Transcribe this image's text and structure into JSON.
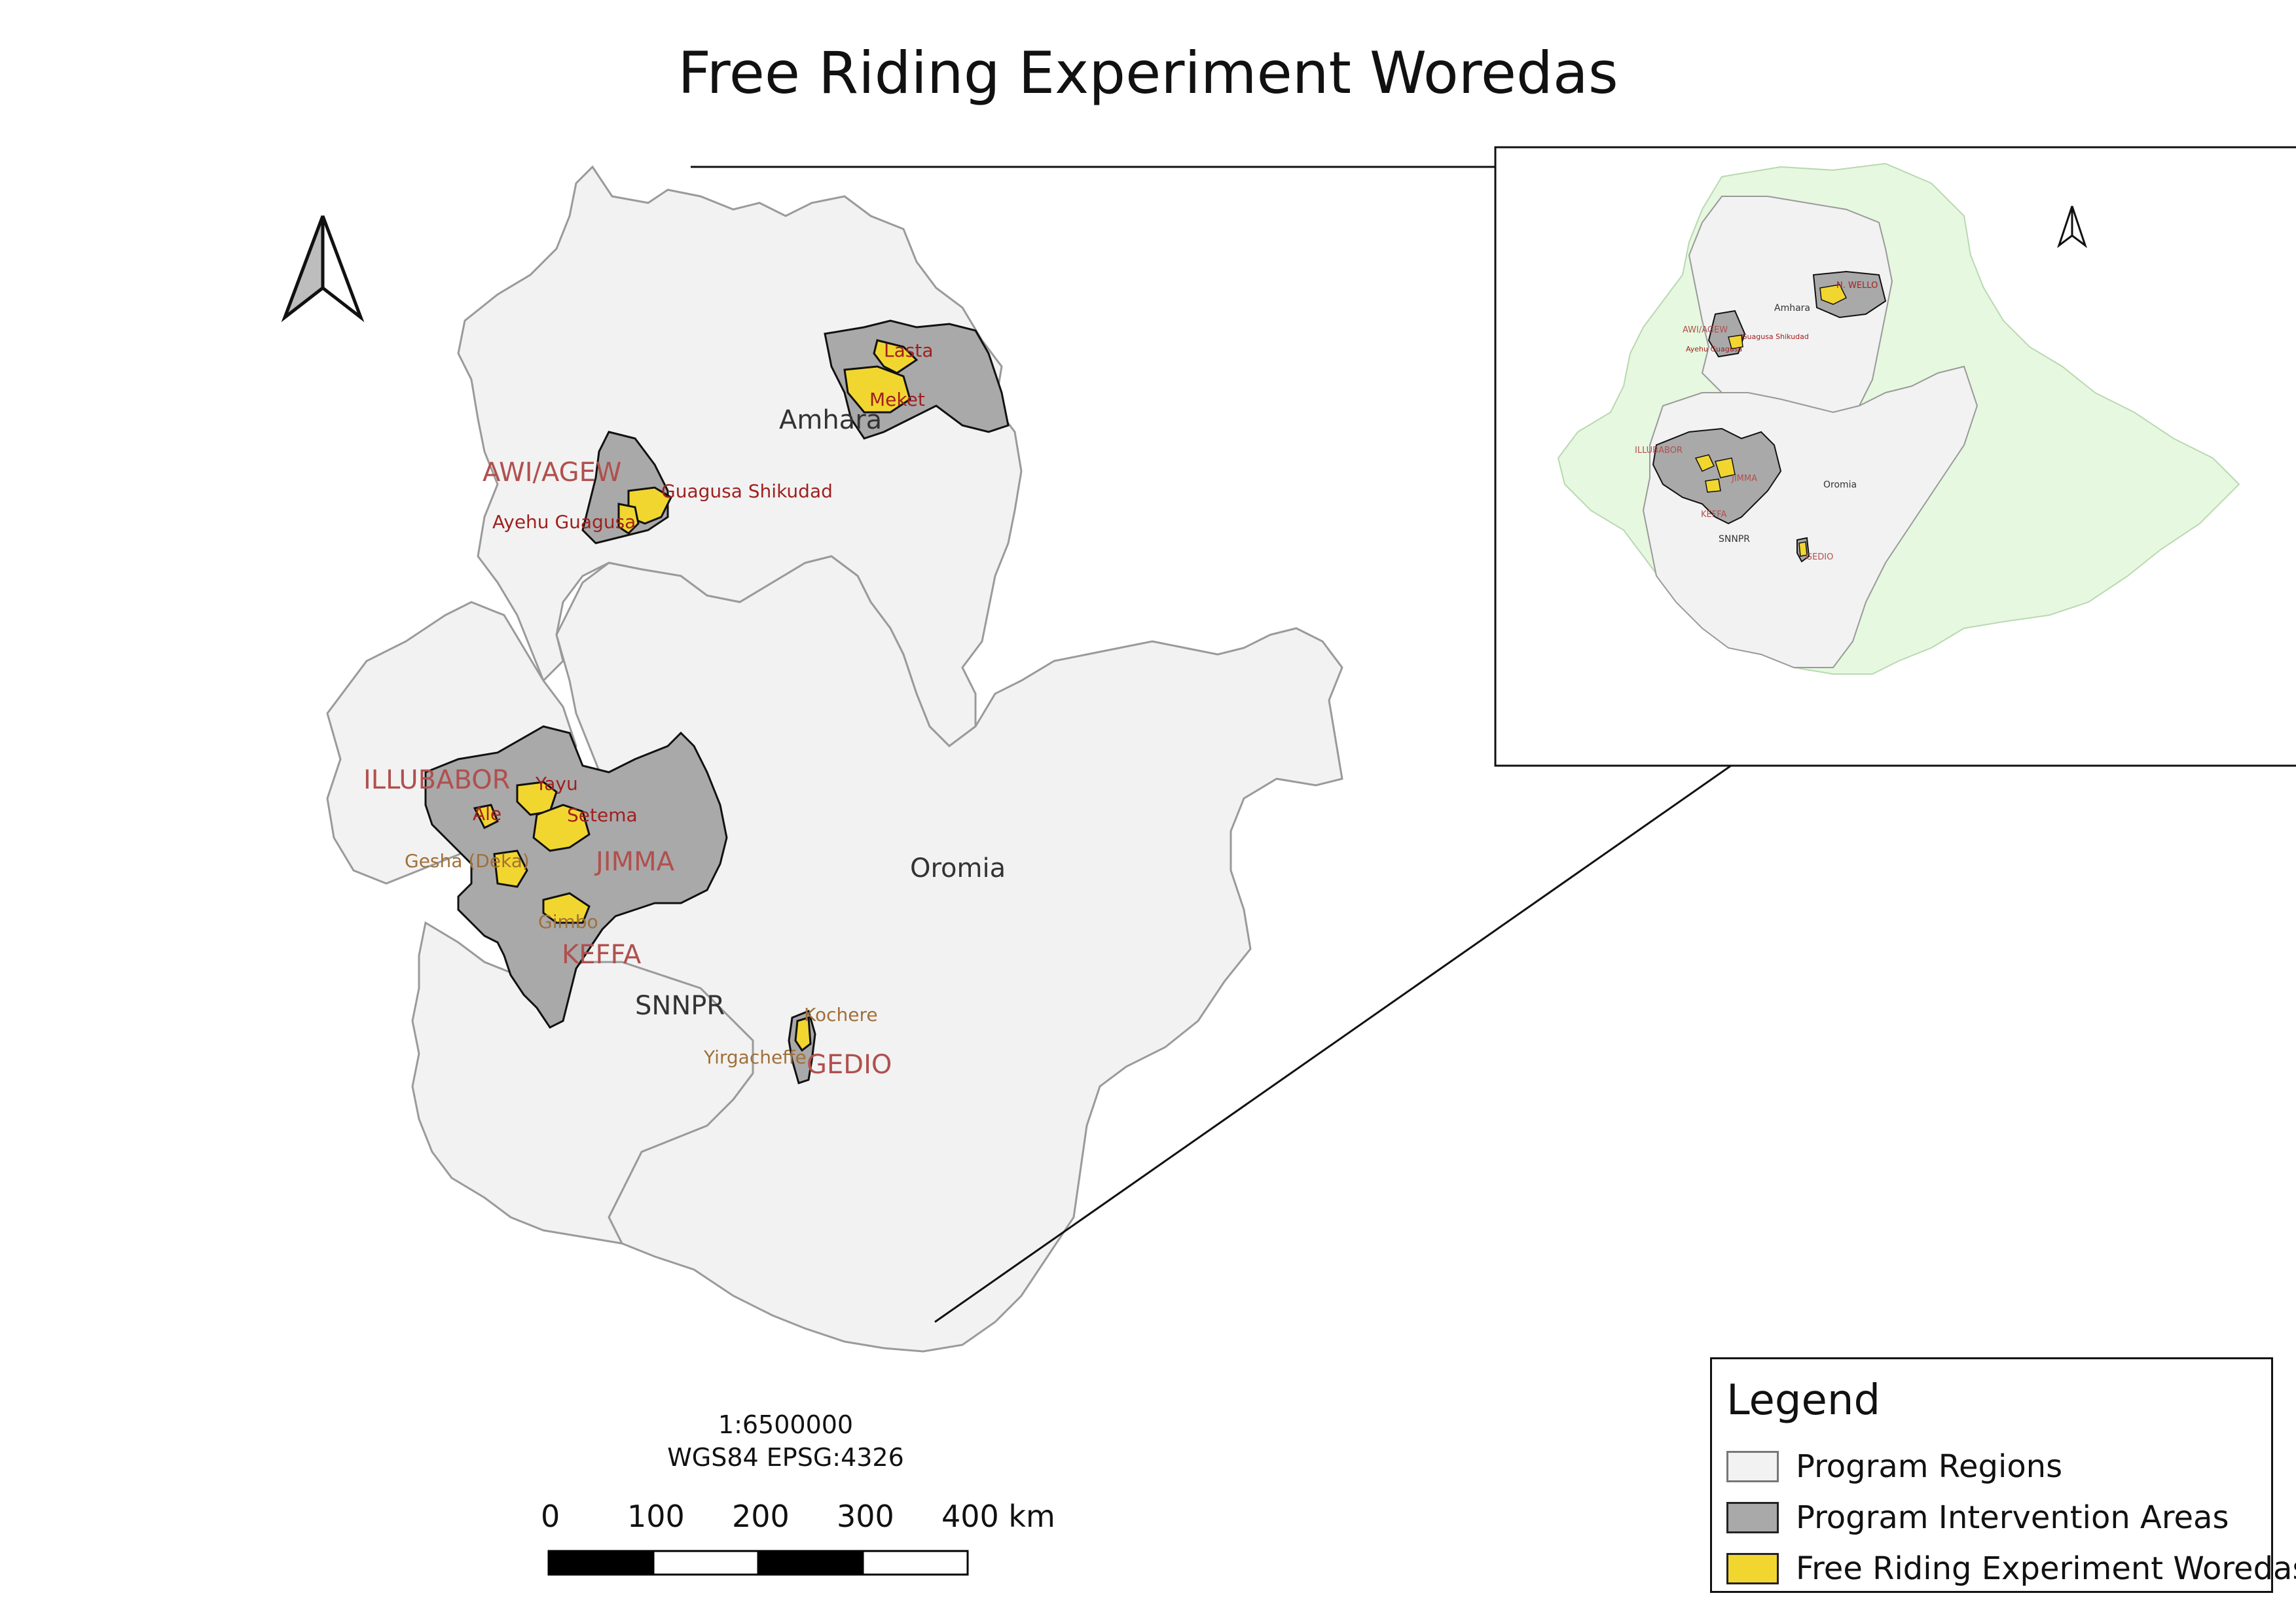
{
  "title": "Free Riding Experiment Woredas",
  "colors": {
    "region_fill": "#f2f2f2",
    "region_stroke": "#9a9a9a",
    "intervention_fill": "#a9a9a9",
    "woreda_fill": "#f2d630",
    "label_zone": "#b0504e",
    "label_woreda": "#a02020",
    "label_woreda_light": "#a0703a",
    "inset_neighbor": "#e6f8df"
  },
  "regions": {
    "amhara": "Amhara",
    "oromia": "Oromia",
    "snnpr": "SNNPR"
  },
  "zones": {
    "awi": "AWI/AGEW",
    "illubabor": "ILLUBABOR",
    "jimma": "JIMMA",
    "keffa": "KEFFA",
    "gedio": "GEDIO"
  },
  "woredas": {
    "lasta": "Lasta",
    "meket": "Meket",
    "guagusa": "Guagusa Shikudad",
    "ayehu": "Ayehu Guagusa",
    "yayu": "Yayu",
    "ale": "Ale",
    "setema": "Setema",
    "gesha": "Gesha (Deka)",
    "gimbo": "Gimbo",
    "kochere": "Kochere",
    "yirgacheffe": "Yirgacheffe"
  },
  "inset_labels": {
    "wello": "N. WELLO",
    "amhara": "Amhara",
    "awi": "AWI/AGEW",
    "guagusa": "Guagusa Shikudad",
    "ayehu": "Ayehu Guagusa",
    "illubabor": "ILLUBABOR",
    "jimma": "JIMMA",
    "keffa": "KEFFA",
    "snnpr": "SNNPR",
    "oromia": "Oromia",
    "gedio": "GEDIO"
  },
  "scale": {
    "ratio": "1:6500000",
    "crs": "WGS84 EPSG:4326",
    "ticks": [
      "0",
      "100",
      "200",
      "300",
      "400 km"
    ]
  },
  "legend": {
    "title": "Legend",
    "items": [
      {
        "label": "Program Regions",
        "swatch": "region"
      },
      {
        "label": "Program Intervention Areas",
        "swatch": "intervention"
      },
      {
        "label": "Free Riding Experiment Woredas",
        "swatch": "woreda"
      }
    ]
  }
}
